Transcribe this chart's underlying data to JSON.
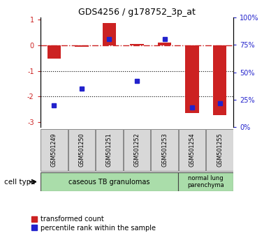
{
  "title": "GDS4256 / g178752_3p_at",
  "samples": [
    "GSM501249",
    "GSM501250",
    "GSM501251",
    "GSM501252",
    "GSM501253",
    "GSM501254",
    "GSM501255"
  ],
  "red_values": [
    -0.52,
    -0.05,
    0.88,
    0.05,
    0.12,
    -2.65,
    -2.72
  ],
  "blue_values_pct": [
    20,
    35,
    80,
    42,
    80,
    18,
    22
  ],
  "ylim_left": [
    -3.2,
    1.1
  ],
  "ylim_right": [
    0,
    100
  ],
  "right_ticks": [
    0,
    25,
    50,
    75,
    100
  ],
  "right_tick_labels": [
    "0%",
    "25%",
    "50%",
    "75%",
    "100%"
  ],
  "left_ticks": [
    -3,
    -2,
    -1,
    0,
    1
  ],
  "hline_y": 0,
  "dotted_lines": [
    -1,
    -2
  ],
  "red_bar_color": "#cc2222",
  "blue_marker_color": "#2222cc",
  "dashed_line_color": "#cc2222",
  "group1_label": "caseous TB granulomas",
  "group2_label": "normal lung\nparenchyma",
  "group1_color": "#aaddaa",
  "group2_color": "#aaddaa",
  "group1_samples": 5,
  "group2_samples": 2,
  "cell_type_label": "cell type",
  "legend1": "transformed count",
  "legend2": "percentile rank within the sample",
  "bar_width": 0.5
}
